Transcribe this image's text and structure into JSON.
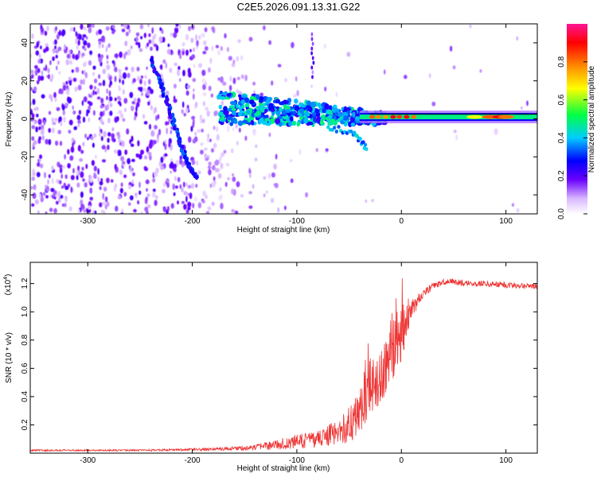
{
  "figure_title": "C2E5.2026.091.13.31.G22",
  "colorbar": {
    "label": "Normalized spectral amplitude",
    "ticks": [
      "0.0",
      "0.2",
      "0.4",
      "0.6",
      "0.8"
    ]
  },
  "chart_data": [
    {
      "type": "heatmap",
      "title": "",
      "xlabel": "Height of straight line (km)",
      "ylabel": "Frequency (Hz)",
      "xlim": [
        -355,
        130
      ],
      "ylim": [
        -50,
        50
      ],
      "xticks": [
        -300,
        -200,
        -100,
        0,
        100
      ],
      "xtick_labels": [
        "-300",
        "-200",
        "-100",
        "0",
        "100"
      ],
      "yticks": [
        -40,
        -20,
        0,
        20,
        40
      ],
      "ytick_labels": [
        "-40",
        "-20",
        "0",
        "20",
        "40"
      ],
      "colorscale": "rainbow",
      "zlim": [
        0,
        1
      ],
      "features": {
        "carrier_line": {
          "x_start": -175,
          "x_end": 130,
          "frequency_hz": 1,
          "amplitude": 0.9
        },
        "descending_streak": {
          "points": [
            [
              -240,
              32
            ],
            [
              -230,
              18
            ],
            [
              -220,
              2
            ],
            [
              -212,
              -12
            ],
            [
              -203,
              -25
            ],
            [
              -196,
              -31
            ]
          ]
        },
        "upper_streak": {
          "x": -85,
          "frequency_range_hz": [
            22,
            46
          ]
        },
        "lower_branch": {
          "points": [
            [
              -70,
              -4
            ],
            [
              -45,
              -8
            ],
            [
              -33,
              -16
            ]
          ]
        }
      }
    },
    {
      "type": "line",
      "title": "",
      "xlabel": "Height of straight line (km)",
      "ylabel": "SNR (10 * v/v)",
      "yscale_label": "(x10",
      "yscale_exponent": "4",
      "xlim": [
        -355,
        130
      ],
      "ylim": [
        0,
        1.35
      ],
      "xticks": [
        -300,
        -200,
        -100,
        0,
        100
      ],
      "xtick_labels": [
        "-300",
        "-200",
        "-100",
        "0",
        "100"
      ],
      "yticks": [
        0.2,
        0.4,
        0.6,
        0.8,
        1.0,
        1.2
      ],
      "ytick_labels": [
        "0.2",
        "0.4",
        "0.6",
        "0.8",
        "1.0",
        "1.2"
      ],
      "series": [
        {
          "color": "#ee3333",
          "x": [
            -355,
            -300,
            -250,
            -200,
            -170,
            -140,
            -120,
            -100,
            -80,
            -60,
            -50,
            -40,
            -30,
            -20,
            -10,
            0,
            10,
            20,
            30,
            45,
            60,
            80,
            100,
            130
          ],
          "mean": [
            0.02,
            0.02,
            0.02,
            0.025,
            0.03,
            0.04,
            0.06,
            0.08,
            0.1,
            0.15,
            0.2,
            0.3,
            0.42,
            0.55,
            0.7,
            0.85,
            1.02,
            1.12,
            1.18,
            1.22,
            1.2,
            1.2,
            1.19,
            1.18
          ],
          "noise": [
            0.006,
            0.006,
            0.006,
            0.008,
            0.012,
            0.02,
            0.035,
            0.05,
            0.06,
            0.09,
            0.13,
            0.17,
            0.2,
            0.22,
            0.22,
            0.2,
            0.07,
            0.03,
            0.025,
            0.022,
            0.022,
            0.022,
            0.022,
            0.022
          ]
        }
      ]
    }
  ]
}
